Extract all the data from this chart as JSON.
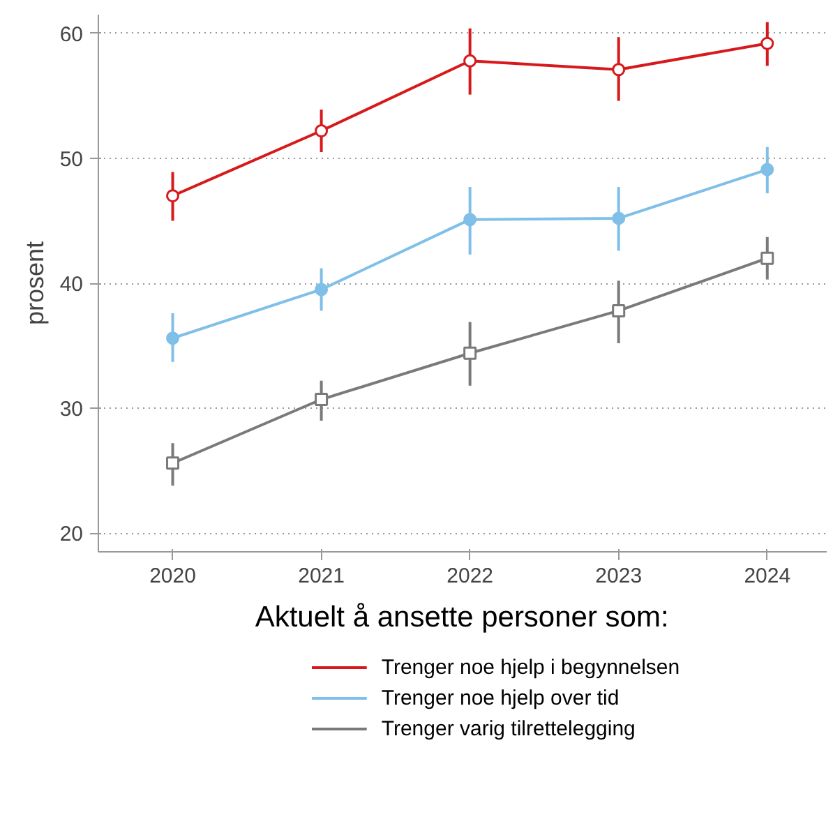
{
  "chart_data": {
    "type": "line",
    "ylabel": "prosent",
    "legend_title": "Aktuelt å ansette personer som:",
    "x": [
      2020,
      2021,
      2022,
      2023,
      2024
    ],
    "xlim": [
      2019.5,
      2024.4
    ],
    "xticks": [
      2020,
      2021,
      2022,
      2023,
      2024
    ],
    "ylim": [
      18.5,
      61.5
    ],
    "yticks": [
      20,
      30,
      40,
      50,
      60
    ],
    "grid": "y",
    "legend": "bottom",
    "series": [
      {
        "name": "Trenger noe hjelp i begynnelsen",
        "color": "#d7191c",
        "marker": "circle",
        "values": [
          47.0,
          52.2,
          57.8,
          57.1,
          59.2
        ],
        "errors": [
          [
            45.0,
            48.9
          ],
          [
            50.5,
            53.9
          ],
          [
            55.1,
            60.4
          ],
          [
            54.6,
            59.7
          ],
          [
            57.4,
            60.9
          ]
        ]
      },
      {
        "name": "Trenger noe hjelp over tid",
        "color": "#7fbfe8",
        "marker": "circle",
        "values": [
          35.6,
          39.5,
          45.1,
          45.2,
          49.1
        ],
        "errors": [
          [
            33.7,
            37.6
          ],
          [
            37.8,
            41.2
          ],
          [
            42.3,
            47.7
          ],
          [
            42.6,
            47.7
          ],
          [
            47.2,
            50.9
          ]
        ]
      },
      {
        "name": "Trenger varig tilrettelegging",
        "color": "#7a7a7a",
        "marker": "square",
        "values": [
          25.6,
          30.7,
          34.4,
          37.8,
          42.0
        ],
        "errors": [
          [
            23.8,
            27.2
          ],
          [
            29.0,
            32.2
          ],
          [
            31.8,
            36.9
          ],
          [
            35.2,
            40.2
          ],
          [
            40.3,
            43.7
          ]
        ]
      }
    ]
  }
}
